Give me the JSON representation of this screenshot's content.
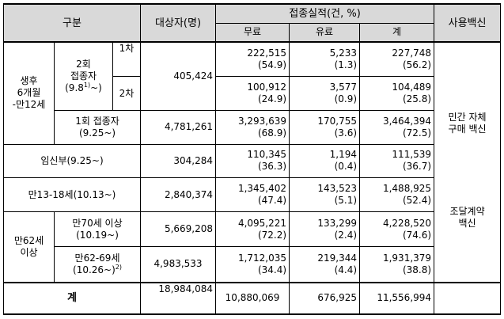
{
  "header": {
    "category": "구분",
    "target": "대상자(명)",
    "performance": "접종실적(건, %)",
    "free": "무료",
    "paid": "유료",
    "total": "계",
    "vaccine": "사용백신"
  },
  "group_infant": "생후\n6개월\n-만12세",
  "sub_two_dose": "2회\n접종자\n(9.8",
  "sub_two_dose_sup": "1)",
  "sub_two_dose_tail": "~)",
  "dose1": "1차",
  "dose2": "2차",
  "one_dose": "1회 접종자\n(9.25~)",
  "pregnant": "임신부(9.25~)",
  "teen": "만13-18세(10.13~)",
  "elder_group": "만62세\n이상",
  "elder70": "만70세 이상\n(10.19~)",
  "elder62_69": "만62-69세\n(10.26~)",
  "elder62_69_sup": "2)",
  "grand_total": "계",
  "vaccine_self": "민간 자체\n구매 백신",
  "vaccine_contract": "조달계약\n백신",
  "rows": {
    "dose1": {
      "target": "405,424",
      "free": "222,515\n(54.9)",
      "paid": "5,233\n(1.3)",
      "total": "227,748\n(56.2)"
    },
    "dose2": {
      "free": "100,912\n(24.9)",
      "paid": "3,577\n(0.9)",
      "total": "104,489\n(25.8)"
    },
    "one_dose": {
      "target": "4,781,261",
      "free": "3,293,639\n(68.9)",
      "paid": "170,755\n(3.6)",
      "total": "3,464,394\n(72.5)"
    },
    "pregnant": {
      "target": "304,284",
      "free": "110,345\n(36.3)",
      "paid": "1,194\n(0.4)",
      "total": "111,539\n(36.7)"
    },
    "teen": {
      "target": "2,840,374",
      "free": "1,345,402\n(47.4)",
      "paid": "143,523\n(5.1)",
      "total": "1,488,925\n(52.4)"
    },
    "elder70": {
      "target": "5,669,208",
      "free": "4,095,221\n(72.2)",
      "paid": "133,299\n(2.4)",
      "total": "4,228,520\n(74.6)"
    },
    "elder62_69": {
      "target": "4,983,533",
      "free": "1,712,035\n(34.4)",
      "paid": "219,344\n(4.4)",
      "total": "1,931,379\n(38.8)"
    },
    "total": {
      "target": "18,984,084",
      "free": "10,880,069",
      "paid": "676,925",
      "total": "11,556,994"
    }
  }
}
